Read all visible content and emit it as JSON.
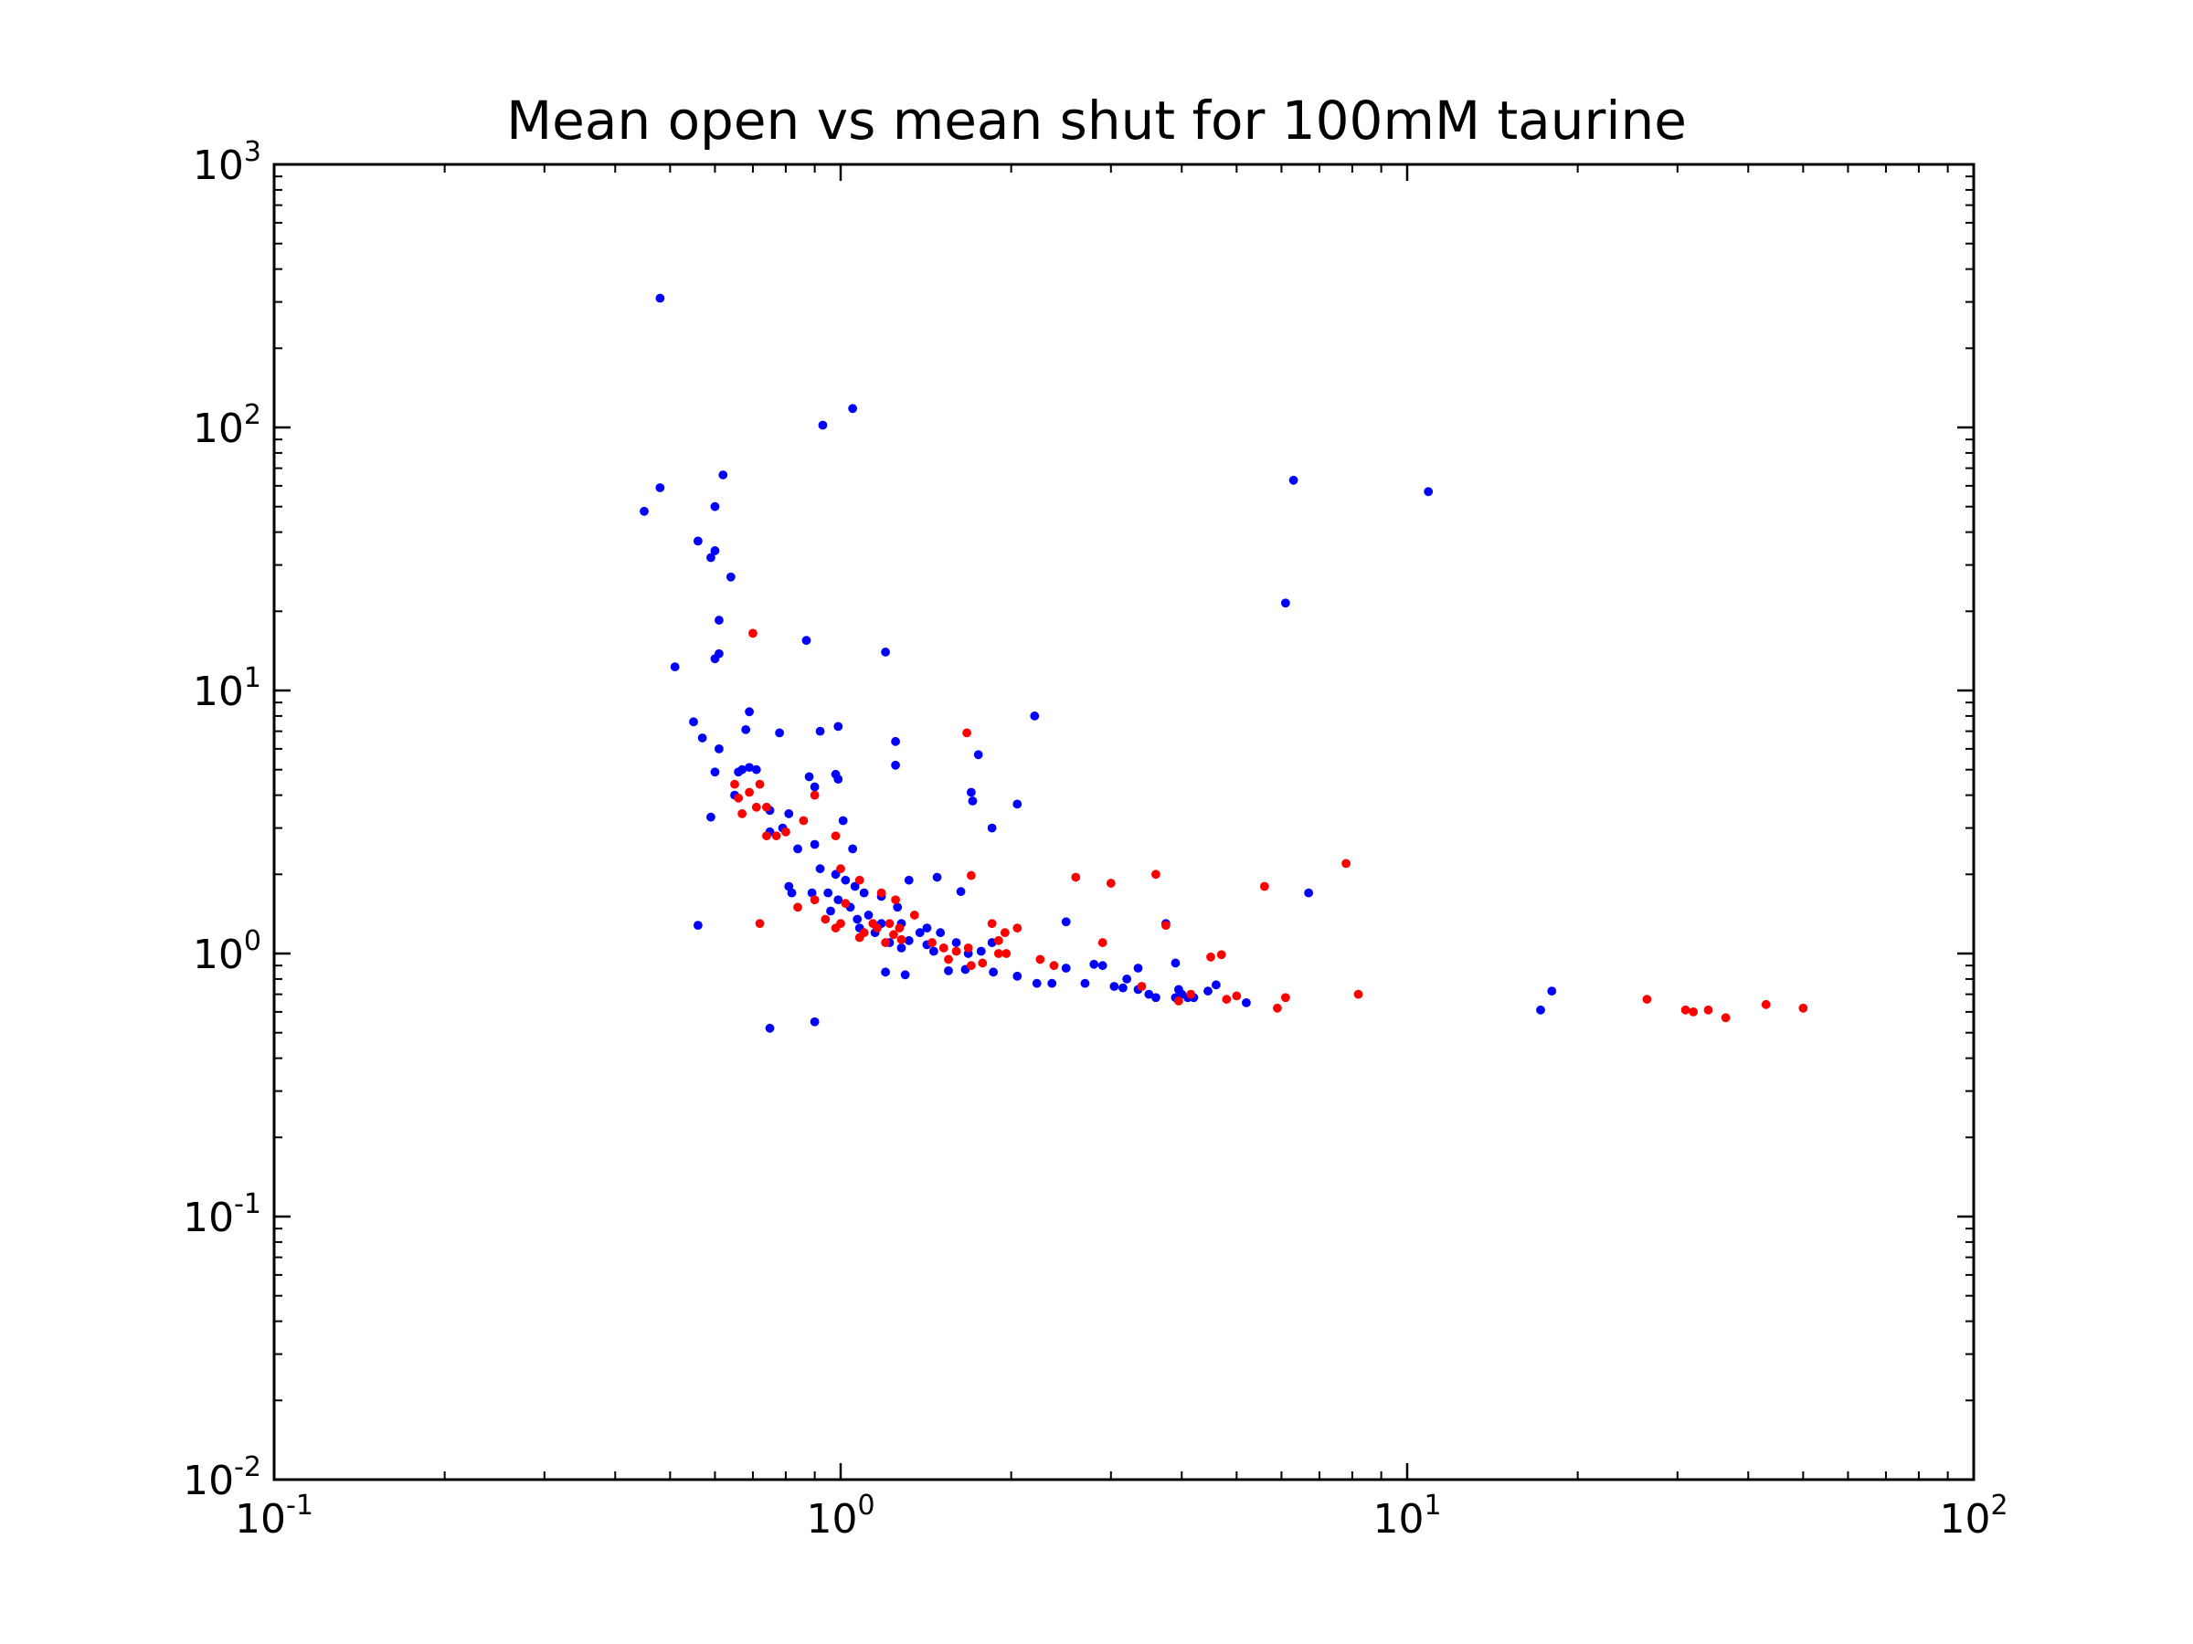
{
  "chart_data": {
    "type": "scatter",
    "title": "Mean open vs mean shut for 100mM taurine",
    "xlabel": "",
    "ylabel": "",
    "xscale": "log",
    "yscale": "log",
    "xlim": [
      0.1,
      100
    ],
    "ylim": [
      0.01,
      1000
    ],
    "grid": false,
    "x_ticks": [
      {
        "value": 0.1,
        "base": "10",
        "exp": "-1"
      },
      {
        "value": 1,
        "base": "10",
        "exp": "0"
      },
      {
        "value": 10,
        "base": "10",
        "exp": "1"
      },
      {
        "value": 100,
        "base": "10",
        "exp": "2"
      }
    ],
    "y_ticks": [
      {
        "value": 0.01,
        "base": "10",
        "exp": "-2"
      },
      {
        "value": 0.1,
        "base": "10",
        "exp": "-1"
      },
      {
        "value": 1,
        "base": "10",
        "exp": "0"
      },
      {
        "value": 10,
        "base": "10",
        "exp": "1"
      },
      {
        "value": 100,
        "base": "10",
        "exp": "2"
      },
      {
        "value": 1000,
        "base": "10",
        "exp": "3"
      }
    ],
    "series": [
      {
        "color": "#0000ff",
        "points": [
          [
            0.48,
            310
          ],
          [
            1.05,
            118
          ],
          [
            0.93,
            102
          ],
          [
            0.62,
            66
          ],
          [
            0.48,
            59
          ],
          [
            0.6,
            50
          ],
          [
            0.45,
            48
          ],
          [
            0.56,
            37
          ],
          [
            0.6,
            34
          ],
          [
            0.59,
            32
          ],
          [
            0.64,
            27
          ],
          [
            0.61,
            18.5
          ],
          [
            0.87,
            15.5
          ],
          [
            1.2,
            14
          ],
          [
            0.61,
            13.8
          ],
          [
            0.6,
            13.2
          ],
          [
            0.51,
            12.3
          ],
          [
            0.69,
            8.3
          ],
          [
            2.2,
            8.0
          ],
          [
            0.55,
            7.6
          ],
          [
            0.99,
            7.3
          ],
          [
            0.68,
            7.1
          ],
          [
            0.92,
            7.0
          ],
          [
            0.78,
            6.9
          ],
          [
            0.57,
            6.6
          ],
          [
            1.25,
            6.4
          ],
          [
            0.61,
            6.0
          ],
          [
            1.75,
            5.7
          ],
          [
            1.25,
            5.2
          ],
          [
            0.69,
            5.1
          ],
          [
            0.67,
            5.0
          ],
          [
            0.71,
            5.0
          ],
          [
            0.6,
            4.9
          ],
          [
            0.66,
            4.9
          ],
          [
            0.88,
            4.7
          ],
          [
            0.98,
            4.8
          ],
          [
            0.99,
            4.6
          ],
          [
            0.9,
            4.3
          ],
          [
            1.7,
            4.1
          ],
          [
            0.65,
            4.0
          ],
          [
            1.71,
            3.8
          ],
          [
            2.05,
            3.7
          ],
          [
            0.75,
            3.5
          ],
          [
            0.59,
            3.3
          ],
          [
            0.81,
            3.4
          ],
          [
            1.01,
            3.2
          ],
          [
            0.79,
            3.0
          ],
          [
            0.75,
            2.9
          ],
          [
            1.85,
            3.0
          ],
          [
            0.84,
            2.5
          ],
          [
            0.9,
            2.6
          ],
          [
            1.05,
            2.5
          ],
          [
            0.92,
            2.1
          ],
          [
            0.98,
            2.0
          ],
          [
            1.02,
            1.9
          ],
          [
            1.32,
            1.9
          ],
          [
            1.48,
            1.95
          ],
          [
            0.81,
            1.8
          ],
          [
            0.89,
            1.7
          ],
          [
            0.95,
            1.7
          ],
          [
            1.06,
            1.8
          ],
          [
            1.1,
            1.7
          ],
          [
            1.18,
            1.65
          ],
          [
            0.82,
            1.7
          ],
          [
            0.99,
            1.6
          ],
          [
            1.04,
            1.5
          ],
          [
            1.12,
            1.4
          ],
          [
            1.26,
            1.5
          ],
          [
            1.63,
            1.72
          ],
          [
            6.7,
            1.7
          ],
          [
            0.96,
            1.45
          ],
          [
            1.07,
            1.35
          ],
          [
            1.18,
            1.3
          ],
          [
            1.28,
            1.3
          ],
          [
            1.42,
            1.25
          ],
          [
            2.5,
            1.32
          ],
          [
            3.75,
            1.3
          ],
          [
            0.56,
            1.28
          ],
          [
            1.08,
            1.25
          ],
          [
            1.15,
            1.2
          ],
          [
            1.38,
            1.2
          ],
          [
            1.5,
            1.2
          ],
          [
            1.22,
            1.1
          ],
          [
            1.32,
            1.12
          ],
          [
            1.42,
            1.08
          ],
          [
            1.6,
            1.1
          ],
          [
            1.85,
            1.1
          ],
          [
            1.28,
            1.05
          ],
          [
            1.46,
            1.02
          ],
          [
            1.68,
            1.0
          ],
          [
            1.77,
            1.02
          ],
          [
            2.5,
            0.88
          ],
          [
            2.8,
            0.91
          ],
          [
            2.9,
            0.9
          ],
          [
            1.2,
            0.85
          ],
          [
            1.3,
            0.83
          ],
          [
            1.55,
            0.86
          ],
          [
            1.66,
            0.87
          ],
          [
            1.86,
            0.85
          ],
          [
            2.05,
            0.82
          ],
          [
            2.22,
            0.77
          ],
          [
            2.36,
            0.77
          ],
          [
            2.7,
            0.77
          ],
          [
            3.2,
            0.8
          ],
          [
            3.35,
            0.88
          ],
          [
            3.9,
            0.92
          ],
          [
            3.04,
            0.75
          ],
          [
            3.15,
            0.74
          ],
          [
            3.35,
            0.73
          ],
          [
            3.5,
            0.7
          ],
          [
            3.6,
            0.68
          ],
          [
            3.9,
            0.68
          ],
          [
            4.0,
            0.7
          ],
          [
            4.1,
            0.68
          ],
          [
            4.2,
            0.68
          ],
          [
            4.45,
            0.72
          ],
          [
            4.6,
            0.76
          ],
          [
            5.2,
            0.65
          ],
          [
            3.95,
            0.73
          ],
          [
            6.3,
            63
          ],
          [
            10.9,
            57
          ],
          [
            6.1,
            21.5
          ],
          [
            0.75,
            0.52
          ],
          [
            0.9,
            0.55
          ],
          [
            17.2,
            0.61
          ],
          [
            18,
            0.72
          ]
        ]
      },
      {
        "color": "#ff0000",
        "points": [
          [
            0.7,
            16.5
          ],
          [
            1.67,
            6.9
          ],
          [
            0.65,
            4.4
          ],
          [
            0.66,
            3.9
          ],
          [
            0.69,
            4.1
          ],
          [
            0.72,
            4.4
          ],
          [
            0.71,
            3.6
          ],
          [
            0.67,
            3.4
          ],
          [
            0.74,
            3.6
          ],
          [
            0.9,
            4.0
          ],
          [
            0.77,
            2.8
          ],
          [
            0.74,
            2.8
          ],
          [
            0.8,
            2.9
          ],
          [
            0.86,
            3.2
          ],
          [
            0.98,
            2.8
          ],
          [
            1.0,
            2.1
          ],
          [
            1.08,
            1.9
          ],
          [
            1.18,
            1.7
          ],
          [
            1.25,
            1.6
          ],
          [
            0.9,
            1.6
          ],
          [
            1.02,
            1.55
          ],
          [
            1.0,
            1.3
          ],
          [
            1.1,
            1.2
          ],
          [
            1.16,
            1.25
          ],
          [
            1.22,
            1.3
          ],
          [
            1.27,
            1.25
          ],
          [
            1.35,
            1.4
          ],
          [
            1.08,
            1.15
          ],
          [
            1.2,
            1.1
          ],
          [
            1.14,
            1.3
          ],
          [
            1.24,
            1.18
          ],
          [
            1.28,
            1.13
          ],
          [
            1.45,
            1.1
          ],
          [
            1.52,
            1.05
          ],
          [
            1.6,
            1.02
          ],
          [
            1.68,
            1.05
          ],
          [
            1.55,
            0.95
          ],
          [
            1.7,
            0.9
          ],
          [
            1.78,
            0.92
          ],
          [
            1.9,
            1.0
          ],
          [
            1.96,
            1.0
          ],
          [
            1.95,
            1.2
          ],
          [
            1.85,
            1.3
          ],
          [
            2.05,
            1.25
          ],
          [
            1.9,
            1.12
          ],
          [
            0.84,
            1.5
          ],
          [
            0.72,
            1.3
          ],
          [
            0.94,
            1.35
          ],
          [
            0.98,
            1.25
          ],
          [
            1.7,
            1.98
          ],
          [
            2.6,
            1.95
          ],
          [
            3.0,
            1.85
          ],
          [
            3.6,
            2.0
          ],
          [
            5.6,
            1.8
          ],
          [
            7.8,
            2.2
          ],
          [
            2.25,
            0.95
          ],
          [
            2.9,
            1.1
          ],
          [
            3.75,
            1.28
          ],
          [
            4.5,
            0.97
          ],
          [
            4.7,
            0.99
          ],
          [
            4.8,
            0.67
          ],
          [
            5.0,
            0.69
          ],
          [
            5.9,
            0.62
          ],
          [
            6.1,
            0.68
          ],
          [
            8.2,
            0.7
          ],
          [
            26.5,
            0.67
          ],
          [
            31,
            0.61
          ],
          [
            32,
            0.6
          ],
          [
            34,
            0.61
          ],
          [
            36.5,
            0.57
          ],
          [
            43,
            0.64
          ],
          [
            50,
            0.62
          ],
          [
            3.4,
            0.75
          ],
          [
            3.95,
            0.66
          ],
          [
            4.15,
            0.7
          ],
          [
            2.38,
            0.9
          ]
        ]
      }
    ]
  }
}
